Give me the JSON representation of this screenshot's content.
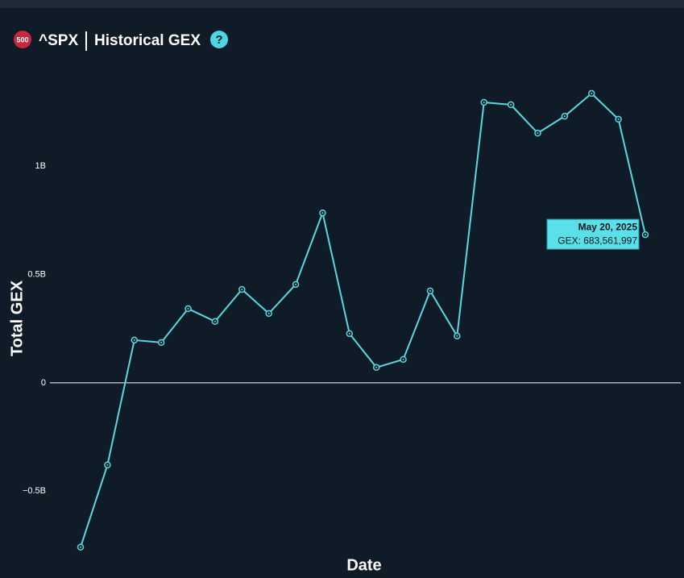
{
  "header": {
    "badge": "500",
    "ticker": "^SPX",
    "title": "Historical GEX",
    "help": "?"
  },
  "chart_data": {
    "type": "line",
    "x_label": "Date",
    "y_label": "Total GEX",
    "categories": [
      null,
      null,
      null,
      null,
      null,
      null,
      null,
      null,
      null,
      null,
      null,
      null,
      null,
      null,
      null,
      null,
      null,
      null,
      null,
      null,
      null,
      "May 20, 2025"
    ],
    "series": [
      {
        "name": "GEX",
        "color": "#5ad8e0",
        "values": [
          -758000000,
          -379000000,
          197000000,
          186000000,
          342000000,
          283000000,
          431000000,
          320000000,
          454000000,
          784000000,
          227000000,
          71000000,
          108000000,
          424000000,
          216000000,
          1294000000,
          1283000000,
          1152000000,
          1230000000,
          1335000000,
          1216000000,
          683561997
        ]
      }
    ],
    "ylim": [
      -800000000,
      1450000000
    ],
    "yticks": [
      {
        "value": -500000000,
        "label": "−0.5B"
      },
      0,
      {
        "value": 500000000,
        "label": "0.5B"
      },
      {
        "value": 1000000000,
        "label": "1B"
      }
    ],
    "tooltip": {
      "title": "May 20, 2025",
      "text": "GEX: 683,561,997"
    }
  }
}
